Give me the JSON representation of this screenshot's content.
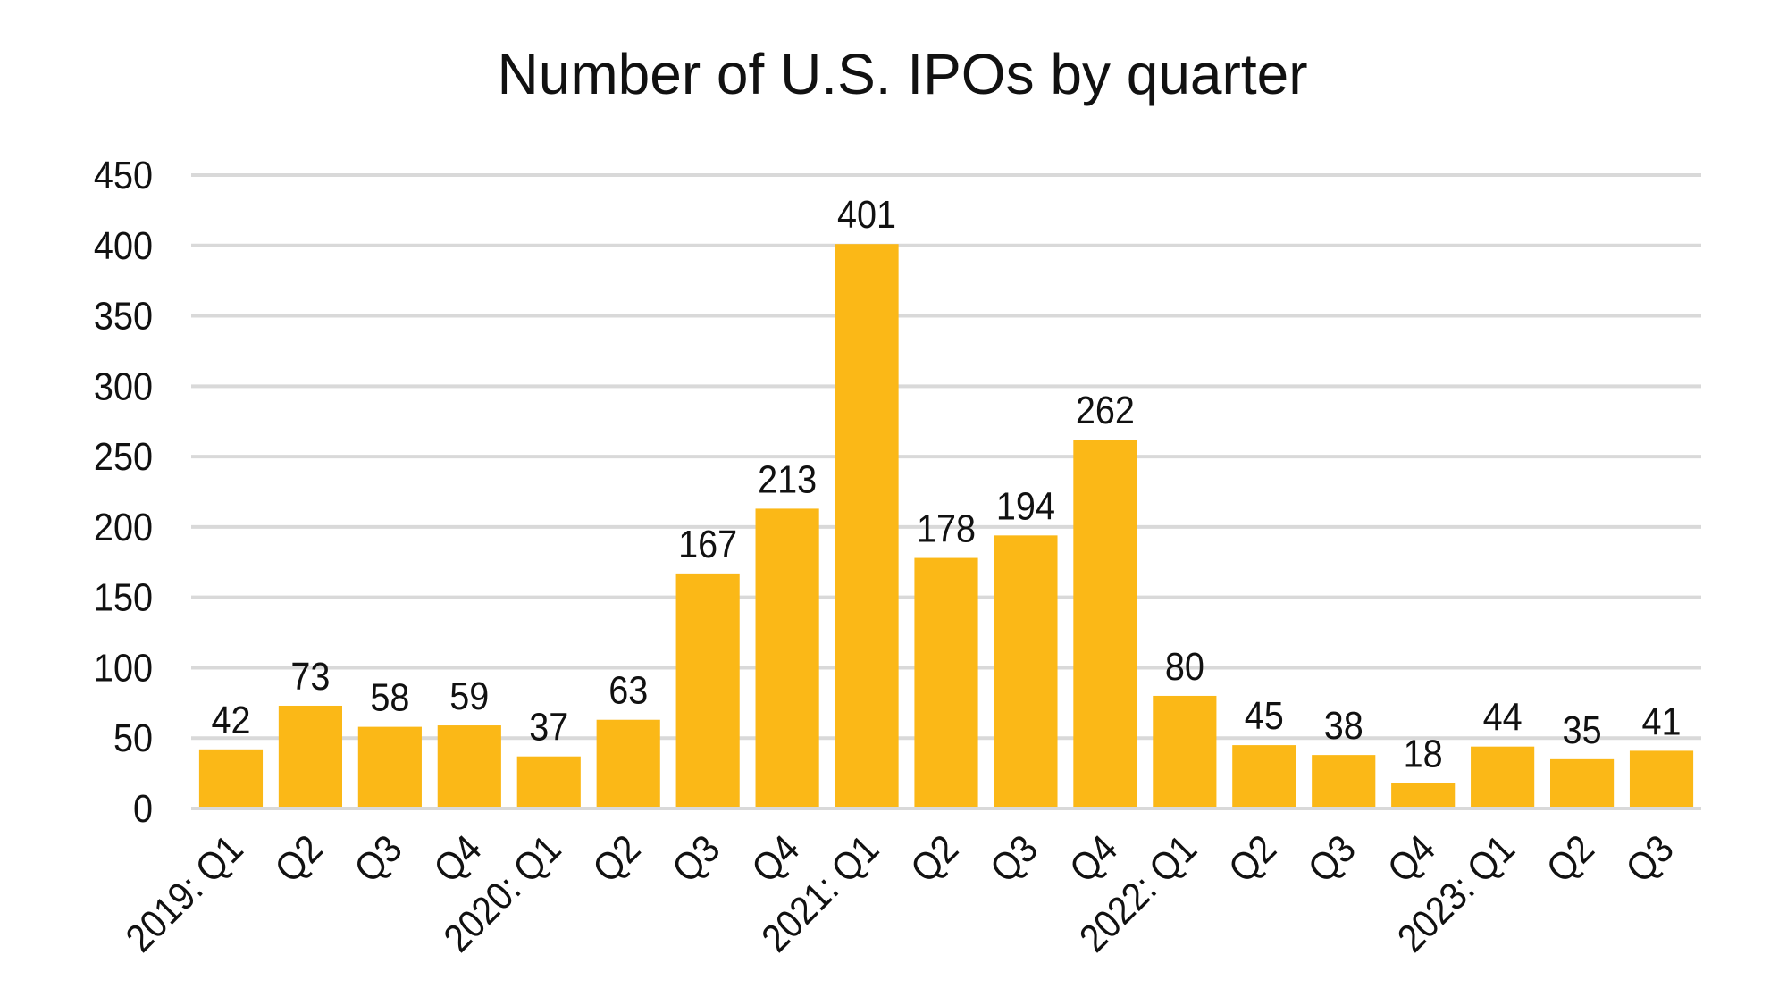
{
  "chart_data": {
    "type": "bar",
    "title": "Number of U.S. IPOs by quarter",
    "xlabel": "",
    "ylabel": "",
    "ylim": [
      0,
      450
    ],
    "yticks": [
      0,
      50,
      100,
      150,
      200,
      250,
      300,
      350,
      400,
      450
    ],
    "grid": true,
    "bar_color": "#FBB817",
    "grid_color": "#D9D9D9",
    "categories": [
      "2019: Q1",
      "Q2",
      "Q3",
      "Q4",
      "2020: Q1",
      "Q2",
      "Q3",
      "Q4",
      "2021: Q1",
      "Q2",
      "Q3",
      "Q4",
      "2022: Q1",
      "Q2",
      "Q3",
      "Q4",
      "2023: Q1",
      "Q2",
      "Q3"
    ],
    "values": [
      42,
      73,
      58,
      59,
      37,
      63,
      167,
      213,
      401,
      178,
      194,
      262,
      80,
      45,
      38,
      18,
      44,
      35,
      41
    ]
  }
}
